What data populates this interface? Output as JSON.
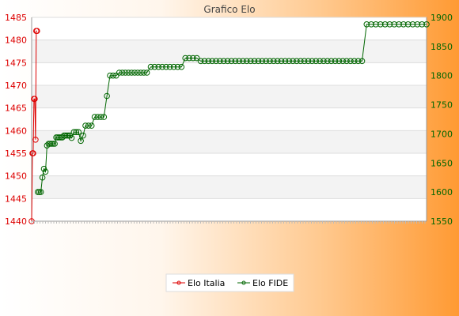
{
  "chart_data": {
    "type": "line",
    "title": "Grafico Elo",
    "grid": true,
    "legend_position": "bottom-center",
    "left_axis": {
      "min": 1440,
      "max": 1485,
      "ticks": [
        1440,
        1445,
        1450,
        1455,
        1460,
        1465,
        1470,
        1475,
        1480,
        1485
      ],
      "color": "#dd0000"
    },
    "right_axis": {
      "min": 1550,
      "max": 1900,
      "ticks": [
        1550,
        1600,
        1650,
        1700,
        1750,
        1800,
        1850,
        1900
      ],
      "color": "#006600"
    },
    "series": [
      {
        "name": "Elo Italia",
        "axis": "left",
        "color": "#dd0000",
        "x": [
          0,
          1,
          2,
          3,
          4,
          5,
          6,
          7
        ],
        "values": [
          1440,
          1455,
          1455,
          1467,
          1467,
          1458,
          1482,
          1482
        ]
      },
      {
        "name": "Elo FIDE",
        "axis": "right",
        "color": "#006600",
        "x": [
          8,
          10,
          12,
          14,
          16,
          18,
          20,
          22,
          24,
          26,
          28,
          30,
          32,
          34,
          36,
          38,
          40,
          42,
          44,
          46,
          48,
          50,
          52,
          55,
          58,
          61,
          64,
          67,
          70,
          74,
          78,
          82,
          86,
          90,
          94,
          98,
          102,
          106,
          110,
          114,
          118,
          122,
          126,
          130,
          134,
          138,
          142,
          146,
          150,
          155,
          160,
          165,
          170,
          175,
          180,
          185,
          190,
          195,
          200,
          205,
          210,
          215,
          220,
          225,
          230,
          235,
          240,
          245,
          250,
          255,
          260,
          265,
          270,
          275,
          280,
          285,
          290,
          295,
          300,
          305,
          310,
          315,
          320,
          325,
          330,
          335,
          340,
          345,
          350,
          355,
          360,
          365,
          370,
          375,
          380,
          385,
          390,
          395,
          400,
          405,
          410,
          415,
          420,
          425,
          430,
          436,
          442,
          448,
          454,
          460,
          466,
          472,
          478,
          484,
          490,
          496,
          502,
          508,
          514
        ],
        "values": [
          1600,
          1600,
          1600,
          1625,
          1640,
          1635,
          1680,
          1683,
          1683,
          1683,
          1683,
          1683,
          1694,
          1694,
          1694,
          1694,
          1694,
          1697,
          1697,
          1697,
          1697,
          1697,
          1693,
          1703,
          1703,
          1703,
          1688,
          1697,
          1714,
          1714,
          1714,
          1729,
          1729,
          1729,
          1729,
          1765,
          1800,
          1800,
          1800,
          1805,
          1805,
          1805,
          1805,
          1805,
          1805,
          1805,
          1805,
          1805,
          1805,
          1815,
          1815,
          1815,
          1815,
          1815,
          1815,
          1815,
          1815,
          1815,
          1830,
          1830,
          1830,
          1830,
          1825,
          1825,
          1825,
          1825,
          1825,
          1825,
          1825,
          1825,
          1825,
          1825,
          1825,
          1825,
          1825,
          1825,
          1825,
          1825,
          1825,
          1825,
          1825,
          1825,
          1825,
          1825,
          1825,
          1825,
          1825,
          1825,
          1825,
          1825,
          1825,
          1825,
          1825,
          1825,
          1825,
          1825,
          1825,
          1825,
          1825,
          1825,
          1825,
          1825,
          1825,
          1825,
          1825,
          1888,
          1888,
          1888,
          1888,
          1888,
          1888,
          1888,
          1888,
          1888,
          1888,
          1888,
          1888,
          1888,
          1888
        ]
      }
    ]
  }
}
